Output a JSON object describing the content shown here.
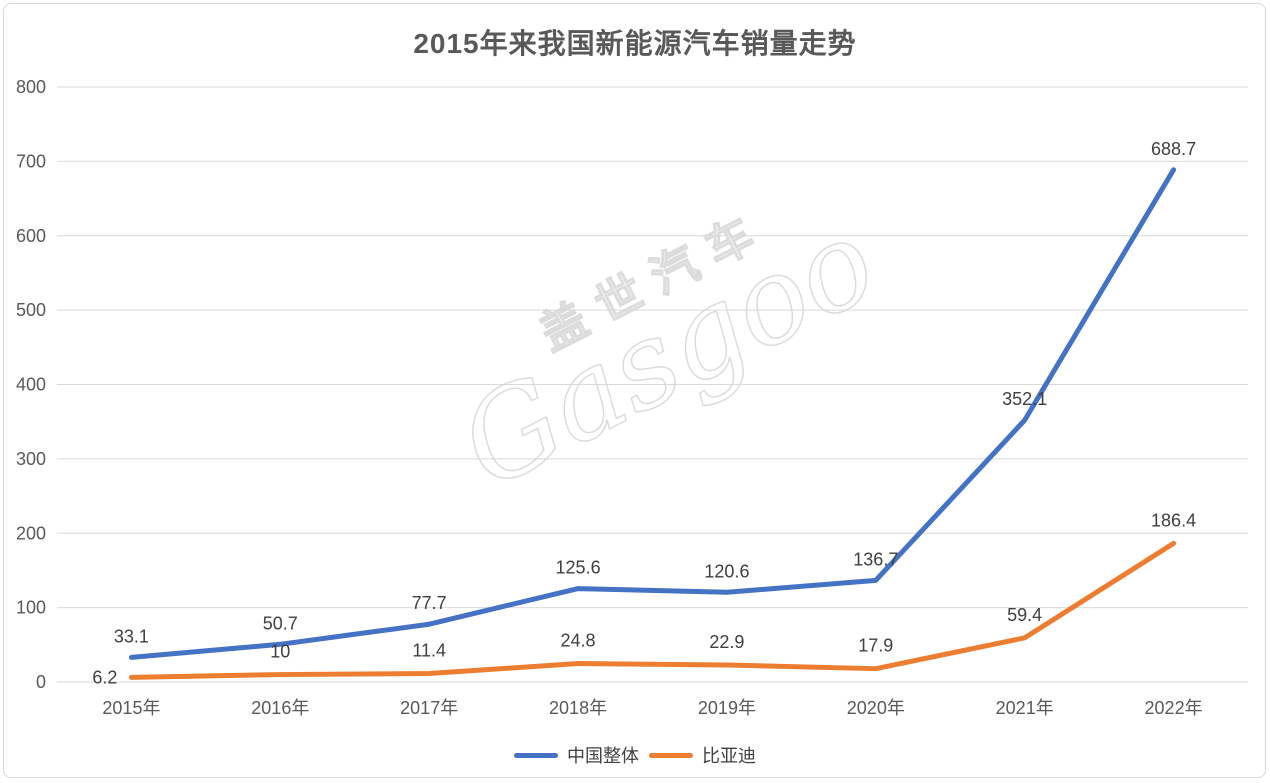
{
  "chart_data": {
    "type": "line",
    "title": "2015年来我国新能源汽车销量走势",
    "categories": [
      "2015年",
      "2016年",
      "2017年",
      "2018年",
      "2019年",
      "2020年",
      "2021年",
      "2022年"
    ],
    "series": [
      {
        "name": "中国整体",
        "color": "#4472C4",
        "values": [
          33.1,
          50.7,
          77.7,
          125.6,
          120.6,
          136.7,
          352.1,
          688.7
        ]
      },
      {
        "name": "比亚迪",
        "color": "#ED7D31",
        "values": [
          6.2,
          10,
          11.4,
          24.8,
          22.9,
          17.9,
          59.4,
          186.4
        ]
      }
    ],
    "y_ticks": [
      0,
      100,
      200,
      300,
      400,
      500,
      600,
      700,
      800
    ],
    "ylim": [
      0,
      800
    ],
    "xlabel": "",
    "ylabel": "",
    "grid": true,
    "legend_position": "bottom",
    "data_labels": true
  },
  "watermark": {
    "line1": "盖世汽车",
    "line2": "Gasgoo"
  },
  "colors": {
    "series_china": "#4472C4",
    "series_byd": "#ED7D31",
    "gridline": "#d9d9d9",
    "tick_text": "#595959",
    "data_label_text": "#404040",
    "title_text": "#595959",
    "frame_border": "#d9d9d9",
    "background": "#ffffff"
  }
}
